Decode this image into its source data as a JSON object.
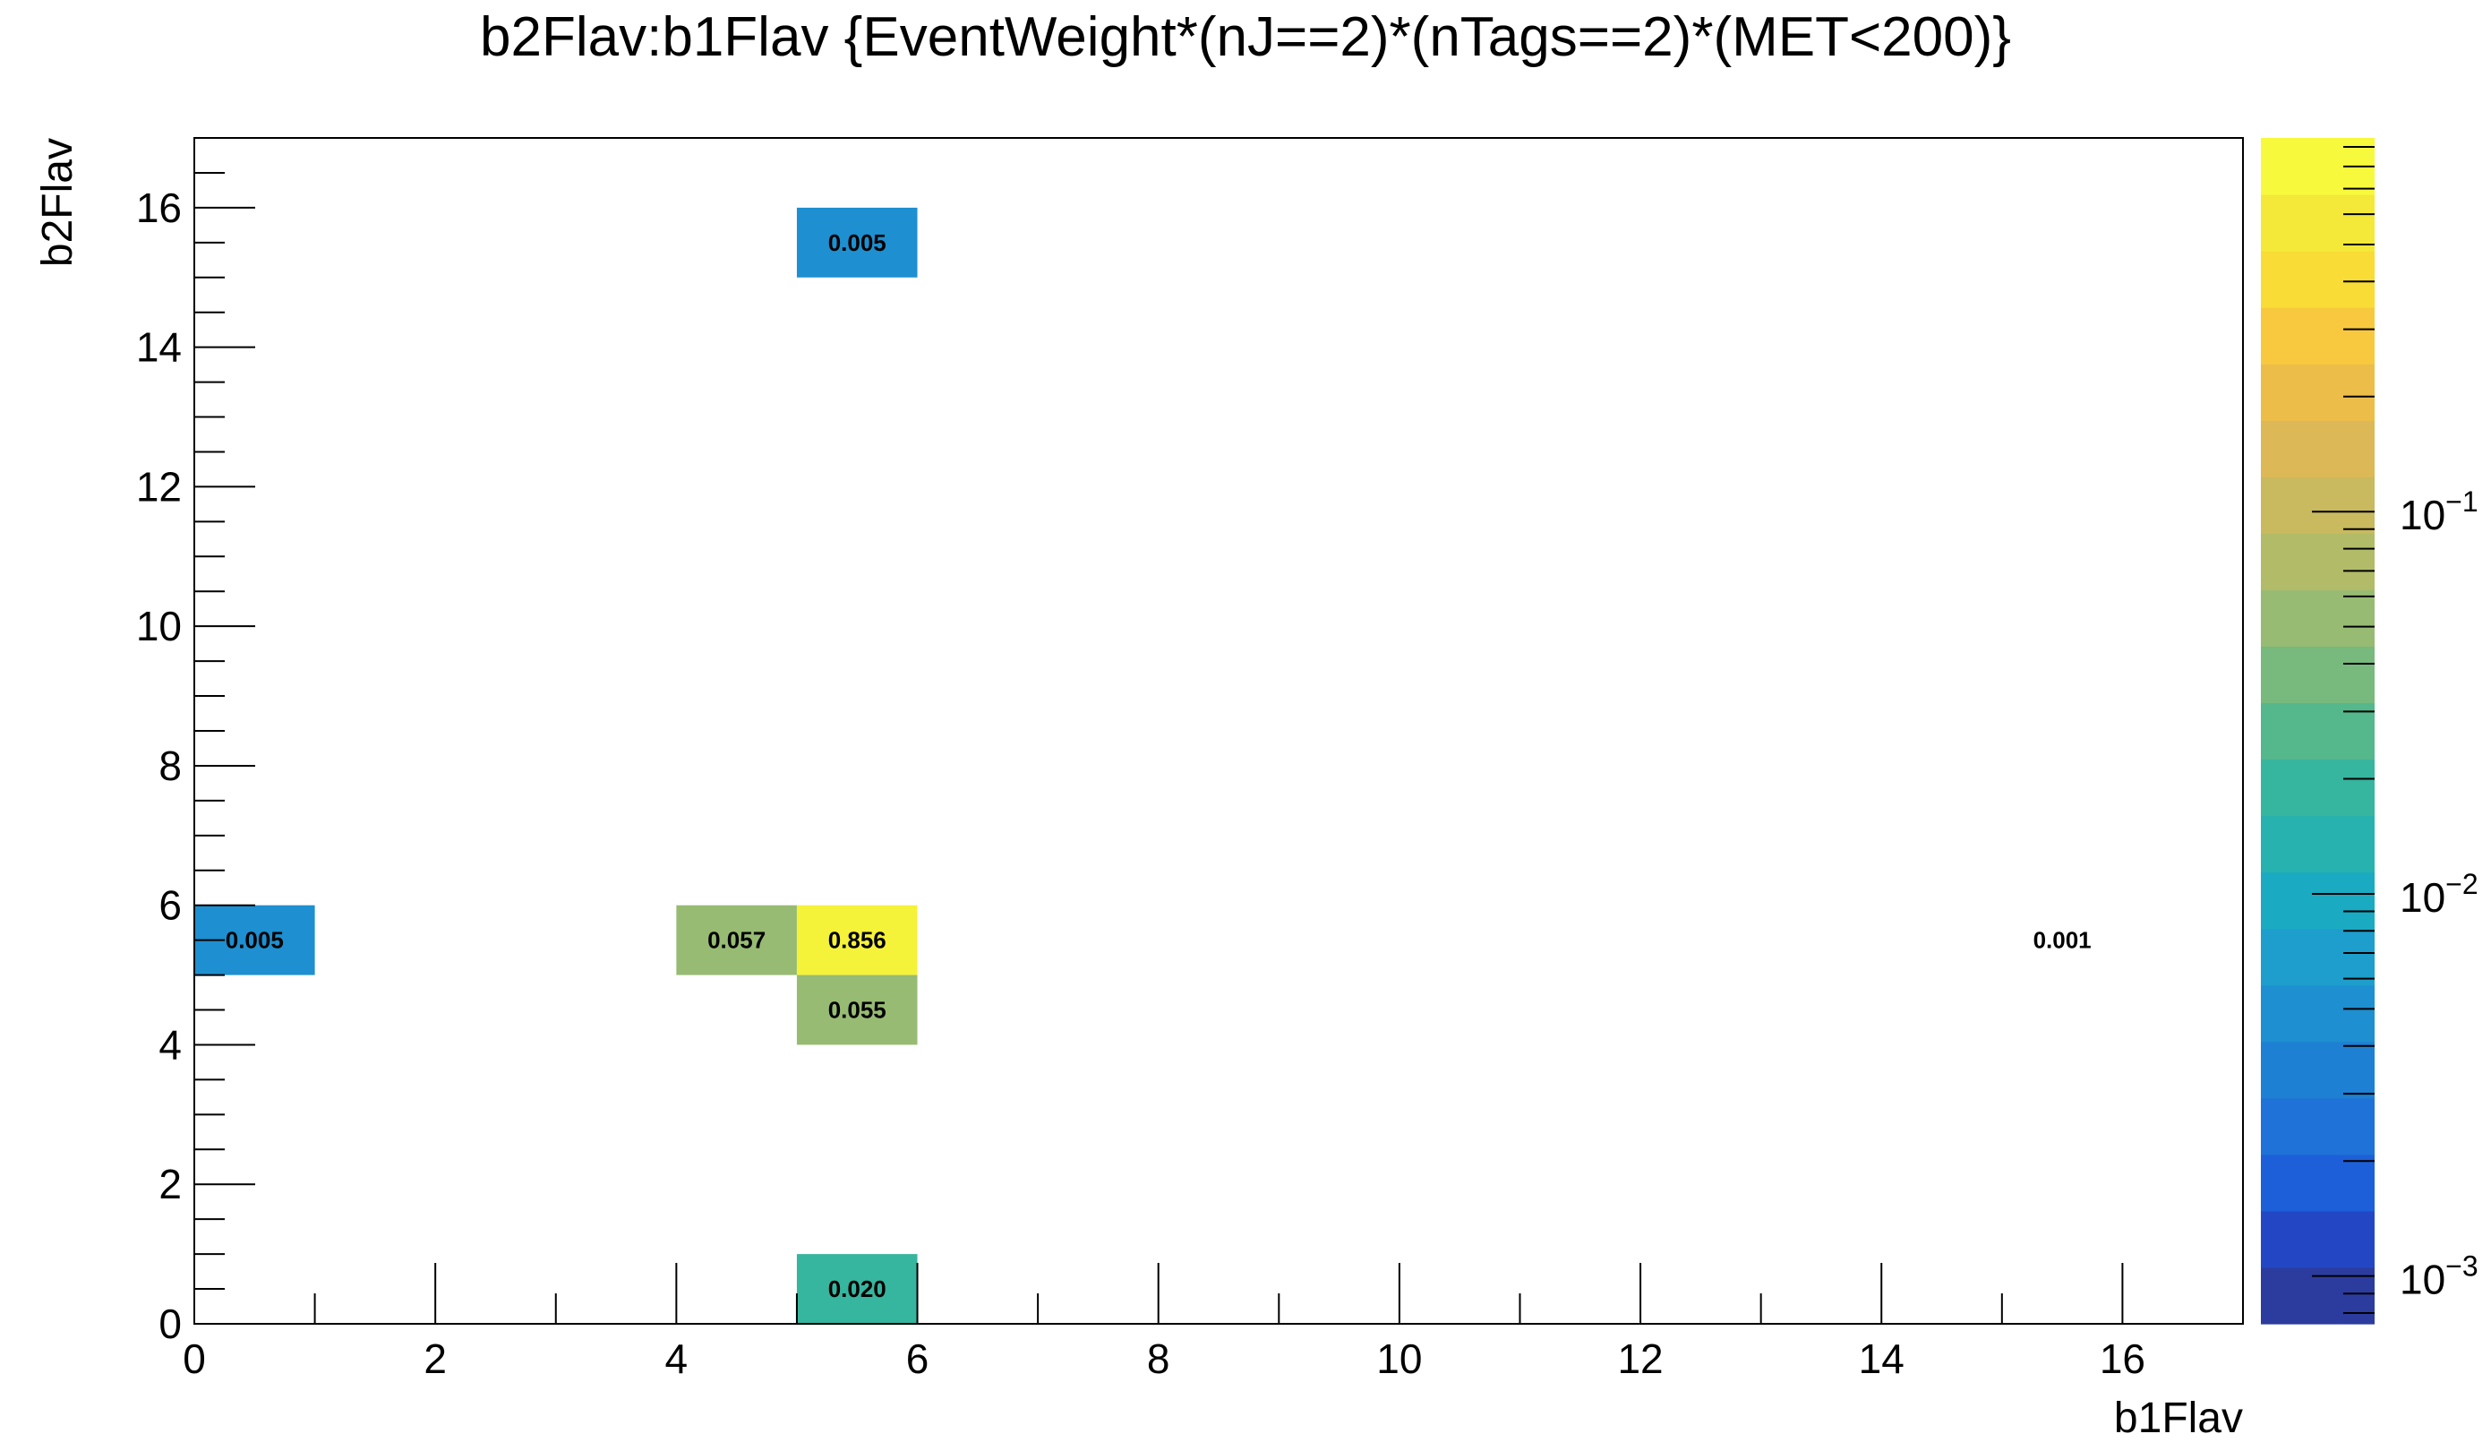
{
  "chart_data": {
    "type": "heatmap",
    "title": "b2Flav:b1Flav {EventWeight*(nJ==2)*(nTags==2)*(MET<200)}",
    "xlabel": "b1Flav",
    "ylabel": "b2Flav",
    "xlim": [
      0,
      17
    ],
    "ylim": [
      0,
      17
    ],
    "x_ticks": [
      0,
      2,
      4,
      6,
      8,
      10,
      12,
      14,
      16
    ],
    "y_ticks": [
      0,
      2,
      4,
      6,
      8,
      10,
      12,
      14,
      16
    ],
    "z_scale": "log",
    "z_range": [
      0.00075,
      0.95
    ],
    "colorbar_ticks": [
      {
        "value": 0.001,
        "label": "10",
        "exponent": "−3"
      },
      {
        "value": 0.01,
        "label": "10",
        "exponent": "−2"
      },
      {
        "value": 0.1,
        "label": "10",
        "exponent": "−1"
      }
    ],
    "cells": [
      {
        "x0": 0,
        "x1": 1,
        "y0": 5,
        "y1": 6,
        "value": 0.005,
        "label": "0.005",
        "color": "#1e8fd0"
      },
      {
        "x0": 4,
        "x1": 5,
        "y0": 5,
        "y1": 6,
        "value": 0.057,
        "label": "0.057",
        "color": "#97bb73"
      },
      {
        "x0": 5,
        "x1": 6,
        "y0": 5,
        "y1": 6,
        "value": 0.856,
        "label": "0.856",
        "color": "#f5f23a"
      },
      {
        "x0": 5,
        "x1": 6,
        "y0": 4,
        "y1": 5,
        "value": 0.055,
        "label": "0.055",
        "color": "#97bb73"
      },
      {
        "x0": 5,
        "x1": 6,
        "y0": 0,
        "y1": 1,
        "value": 0.02,
        "label": "0.020",
        "color": "#36b59f"
      },
      {
        "x0": 5,
        "x1": 6,
        "y0": 15,
        "y1": 16,
        "value": 0.005,
        "label": "0.005",
        "color": "#1e8fd0"
      },
      {
        "x0": 15,
        "x1": 16,
        "y0": 5,
        "y1": 6,
        "value": 0.001,
        "label": "0.001",
        "color": "#ffffff"
      }
    ],
    "palette": [
      "#2c3c9e",
      "#2347c4",
      "#1d5fd9",
      "#1f72d7",
      "#1e80d3",
      "#1e8fd0",
      "#1d9ecc",
      "#1aabc3",
      "#27b2b0",
      "#36b59f",
      "#55b78c",
      "#78b97e",
      "#97bb73",
      "#b2bb68",
      "#c9b95f",
      "#dcb857",
      "#edbd4a",
      "#f8c93f",
      "#f9dc36",
      "#f4e938",
      "#f7f93c"
    ],
    "grid": false,
    "legend": "colorbar-right"
  }
}
